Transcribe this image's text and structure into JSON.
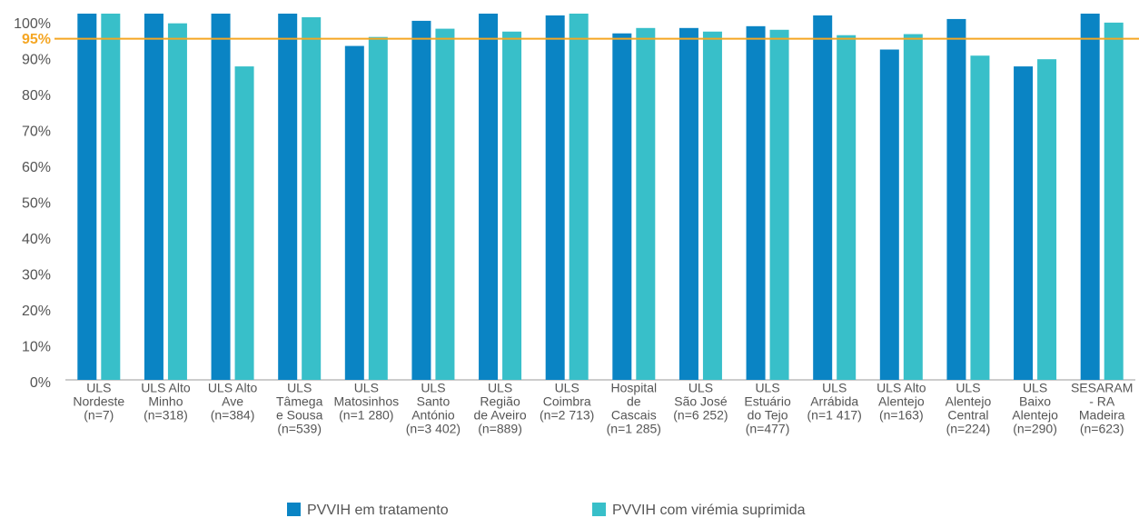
{
  "chart_data": {
    "type": "bar",
    "categories": [
      [
        "ULS",
        "Nordeste",
        "(n=7)"
      ],
      [
        "ULS Alto",
        "Minho",
        "(n=318)"
      ],
      [
        "ULS Alto",
        "Ave",
        "(n=384)"
      ],
      [
        "ULS",
        "Tâmega",
        "e Sousa",
        "(n=539)"
      ],
      [
        "ULS",
        "Matosinhos",
        "(n=1 280)"
      ],
      [
        "ULS",
        "Santo",
        "António",
        "(n=3 402)"
      ],
      [
        "ULS",
        "Região",
        "de Aveiro",
        "(n=889)"
      ],
      [
        "ULS",
        "Coimbra",
        "(n=2 713)"
      ],
      [
        "Hospital",
        "de",
        "Cascais",
        "(n=1 285)"
      ],
      [
        "ULS",
        "São José",
        "(n=6 252)"
      ],
      [
        "ULS",
        "Estuário",
        "do Tejo",
        "(n=477)"
      ],
      [
        "ULS",
        "Arrábida",
        "(n=1 417)"
      ],
      [
        "ULS Alto",
        "Alentejo",
        "(n=163)"
      ],
      [
        "ULS",
        "Alentejo",
        "Central",
        "(n=224)"
      ],
      [
        "ULS",
        "Baixo",
        "Alentejo",
        "(n=290)"
      ],
      [
        "SESARAM",
        "- RA",
        "Madeira",
        "(n=623)"
      ]
    ],
    "series": [
      {
        "name": "PVVIH em tratamento",
        "color": "#0a84c4",
        "values": [
          102,
          102,
          102,
          102,
          93,
          100,
          102,
          101.5,
          96.5,
          98,
          98.5,
          101.5,
          92,
          100.5,
          87.3,
          102
        ]
      },
      {
        "name": "PVVIH com virémia suprimida",
        "color": "#38bfc9",
        "values": [
          102,
          99.3,
          87.3,
          101,
          95.5,
          97.8,
          97,
          102,
          98,
          97,
          97.5,
          96,
          96.3,
          90.3,
          89.3,
          99.5
        ]
      }
    ],
    "ylim": [
      0,
      102
    ],
    "yticks": [
      {
        "value": 0,
        "label": "0%"
      },
      {
        "value": 10,
        "label": "10%"
      },
      {
        "value": 20,
        "label": "20%"
      },
      {
        "value": 30,
        "label": "30%"
      },
      {
        "value": 40,
        "label": "40%"
      },
      {
        "value": 50,
        "label": "50%"
      },
      {
        "value": 60,
        "label": "60%"
      },
      {
        "value": 70,
        "label": "70%"
      },
      {
        "value": 80,
        "label": "80%"
      },
      {
        "value": 90,
        "label": "90%"
      },
      {
        "value": 100,
        "label": "100%"
      }
    ],
    "reference_line": {
      "value": 95,
      "label": "95%",
      "color": "#f5a623"
    },
    "grid": false,
    "legend": "bottom"
  }
}
